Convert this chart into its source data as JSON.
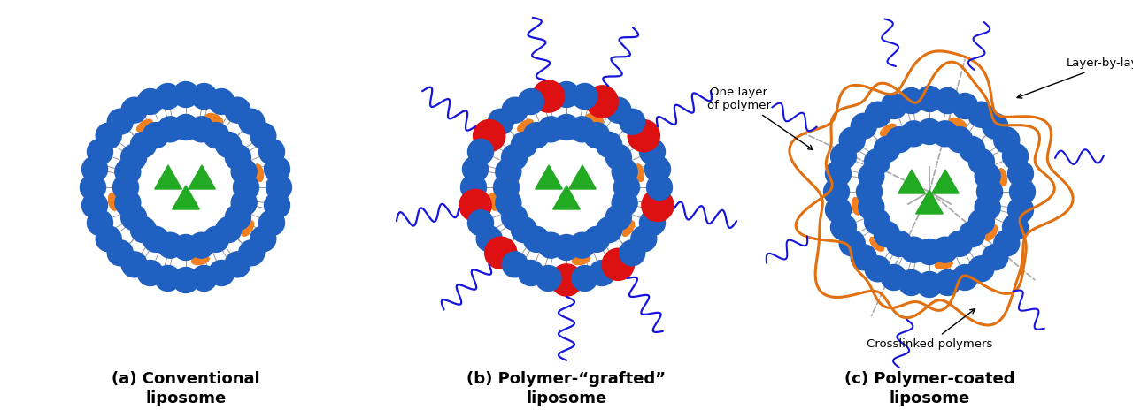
{
  "bg_color": "#ffffff",
  "blue_lipid": "#2060c0",
  "orange_lipid": "#f08020",
  "red_lipid": "#dd1111",
  "green_tri": "#22aa22",
  "polymer_blue": "#1515dd",
  "polymer_orange": "#e07010",
  "gray_line": "#999999",
  "dashed_gray": "#aaaaaa",
  "label_a": "(a) Conventional\nliposome",
  "label_b": "(b) Polymer-“grafted”\nliposome",
  "label_c": "(c) Polymer-coated\nliposome",
  "ann_one_layer": "One layer\nof polymer",
  "ann_layer_by_layer": "Layer-by-layer",
  "ann_crosslinked": "Crosslinked polymers",
  "figw": 12.8,
  "figh": 4.72,
  "dpi": 100
}
